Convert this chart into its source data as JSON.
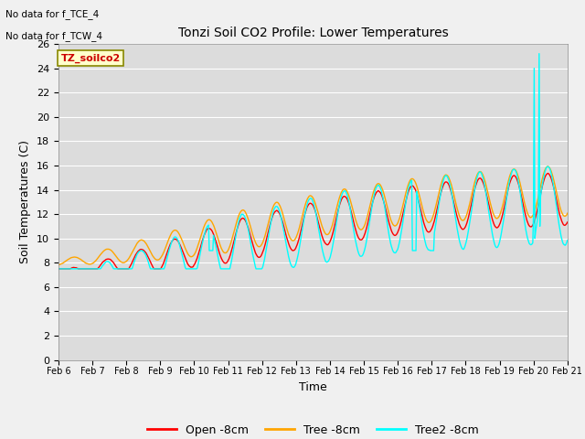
{
  "title": "Tonzi Soil CO2 Profile: Lower Temperatures",
  "ylabel": "Soil Temperatures (C)",
  "xlabel": "Time",
  "text_lines": [
    "No data for f_TCE_4",
    "No data for f_TCW_4"
  ],
  "watermark": "TZ_soilco2",
  "ylim": [
    0,
    26
  ],
  "yticks": [
    0,
    2,
    4,
    6,
    8,
    10,
    12,
    14,
    16,
    18,
    20,
    22,
    24,
    26
  ],
  "xtick_labels": [
    "Feb 6",
    "Feb 7",
    "Feb 8",
    "Feb 9",
    "Feb 10",
    "Feb 11",
    "Feb 12",
    "Feb 13",
    "Feb 14",
    "Feb 15",
    "Feb 16",
    "Feb 17",
    "Feb 18",
    "Feb 19",
    "Feb 20",
    "Feb 21"
  ],
  "colors": {
    "open": "#ff0000",
    "tree": "#ffa500",
    "tree2": "#00ffff"
  },
  "legend_labels": [
    "Open -8cm",
    "Tree -8cm",
    "Tree2 -8cm"
  ],
  "bg_color": "#dcdcdc",
  "plot_bg": "#dcdcdc",
  "fig_bg": "#f0f0f0"
}
